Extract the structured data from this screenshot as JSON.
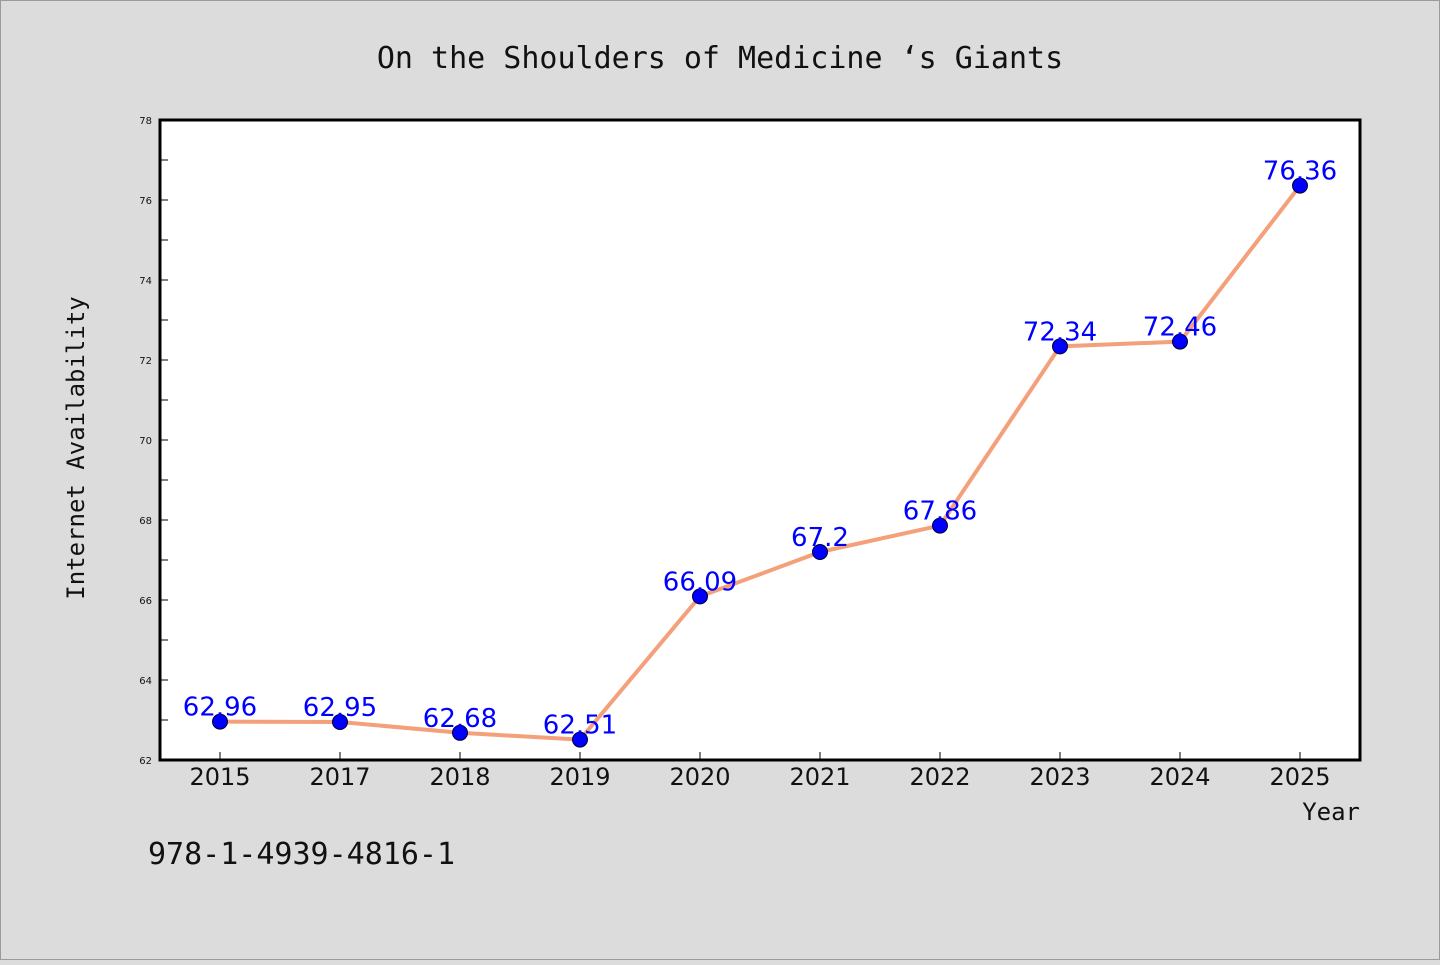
{
  "chart_data": {
    "type": "line",
    "title": "On the Shoulders of Medicine ‘s Giants",
    "xlabel": "Year",
    "ylabel": "Internet Availability",
    "categories": [
      "2015",
      "2017",
      "2018",
      "2019",
      "2020",
      "2021",
      "2022",
      "2023",
      "2024",
      "2025"
    ],
    "series": [
      {
        "values": [
          62.96,
          62.95,
          62.68,
          62.51,
          66.09,
          67.2,
          67.86,
          72.34,
          72.46,
          76.36
        ],
        "labels": [
          "62.96",
          "62.95",
          "62.68",
          "62.51",
          "66.09",
          "67.2",
          "67.86",
          "72.34",
          "72.46",
          "76.36"
        ]
      }
    ],
    "ylim": [
      62,
      78
    ],
    "yticks": [
      "62",
      "64",
      "66",
      "68",
      "70",
      "72",
      "74",
      "76",
      "78"
    ],
    "grid": false,
    "legend": "none",
    "colors": {
      "line": "#f4a07a",
      "marker": "#0000ff",
      "label": "#0000ff",
      "background": "#dcdcdc",
      "plot_background": "#ffffff"
    }
  },
  "footer": {
    "isbn": "978-1-4939-4816-1"
  }
}
